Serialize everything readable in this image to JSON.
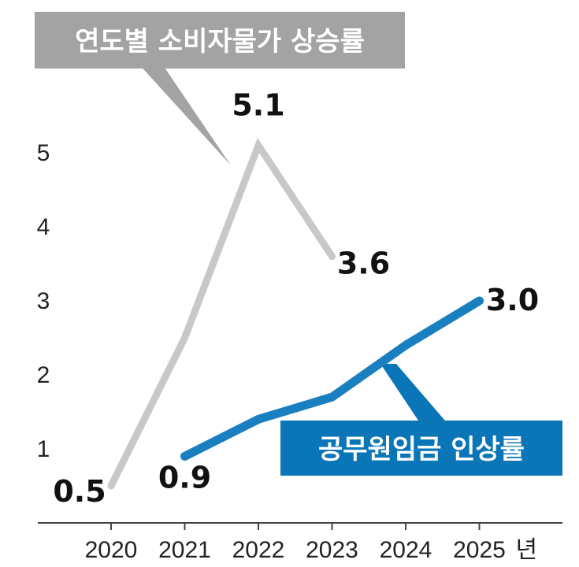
{
  "chart_data": {
    "type": "line",
    "x": [
      "2020",
      "2021",
      "2022",
      "2023",
      "2024",
      "2025"
    ],
    "x_unit": "년",
    "ylim": [
      0,
      6
    ],
    "yticks": [
      "1",
      "2",
      "3",
      "4",
      "5"
    ],
    "grid": false,
    "series": [
      {
        "name": "연도별 소비자물가 상승률",
        "color": "#c8c8c8",
        "values": [
          0.5,
          2.5,
          5.1,
          3.6,
          null,
          null
        ],
        "labels": [
          {
            "index": 0,
            "text": "0.5"
          },
          {
            "index": 2,
            "text": "5.1"
          },
          {
            "index": 3,
            "text": "3.6"
          }
        ]
      },
      {
        "name": "공무원임금 인상률",
        "color": "#1a7fc0",
        "values": [
          null,
          0.9,
          1.4,
          1.7,
          2.4,
          3.0
        ],
        "labels": [
          {
            "index": 1,
            "text": "0.9"
          },
          {
            "index": 5,
            "text": "3.0"
          }
        ]
      }
    ],
    "callouts": {
      "cpi_bg": "#a3a3a3",
      "wage_bg": "#0a76b8"
    }
  }
}
